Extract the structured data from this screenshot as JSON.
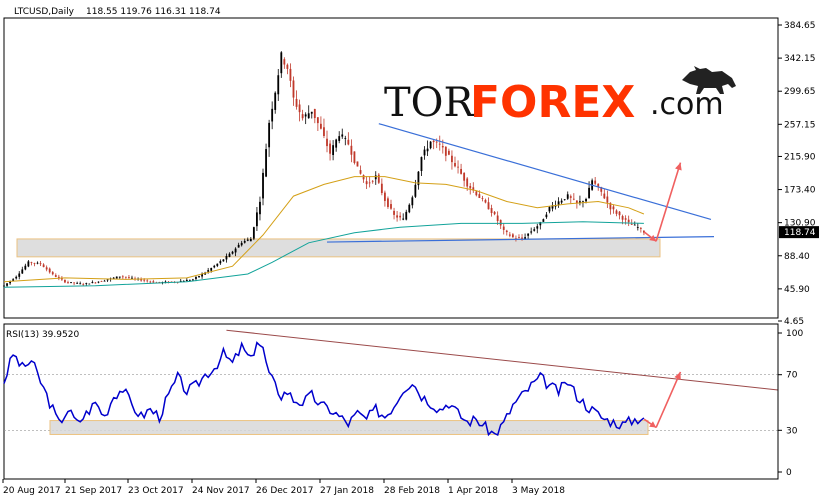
{
  "header": {
    "symbol_label": "LTCUSD,Daily",
    "ohlc_label": "118.55 119.76 116.31 118.74"
  },
  "logo": {
    "part1": "TOR",
    "part2": "FOREX",
    "part3": ".com"
  },
  "colors": {
    "bull_candle": "#000000",
    "bear_candle": "#c0392b",
    "ma_fast": "#d4a017",
    "ma_slow": "#12a39a",
    "trend_line": "#3a6fd8",
    "rsi_line": "#0000cc",
    "rsi_trend": "#9b4a4a",
    "arrow": "#f06060",
    "zone_fill": "#d9d9d9",
    "zone_border": "#e8b86a"
  },
  "chart_data": [
    {
      "type": "candlestick",
      "title": "",
      "symbol": "LTCUSD",
      "timeframe": "Daily",
      "last_ohlc": {
        "open": 118.55,
        "high": 119.76,
        "low": 116.31,
        "close": 118.74
      },
      "current_price_label": "118.74",
      "x_ticks": [
        "20 Aug 2017",
        "21 Sep 2017",
        "23 Oct 2017",
        "24 Nov 2017",
        "26 Dec 2017",
        "27 Jan 2018",
        "28 Feb 2018",
        "1 Apr 2018",
        "3 May 2018"
      ],
      "y_ticks": [
        "384.65",
        "342.15",
        "299.65",
        "257.15",
        "215.90",
        "173.40",
        "130.90",
        "88.40",
        "45.90",
        "4.65"
      ],
      "ylim": [
        4.65,
        384.65
      ],
      "price_path": [
        [
          0,
          50
        ],
        [
          4,
          62
        ],
        [
          8,
          80
        ],
        [
          12,
          78
        ],
        [
          16,
          64
        ],
        [
          20,
          55
        ],
        [
          26,
          52
        ],
        [
          32,
          56
        ],
        [
          38,
          62
        ],
        [
          44,
          58
        ],
        [
          50,
          54
        ],
        [
          56,
          55
        ],
        [
          62,
          58
        ],
        [
          66,
          67
        ],
        [
          70,
          78
        ],
        [
          74,
          90
        ],
        [
          78,
          106
        ],
        [
          81,
          110
        ],
        [
          84,
          160
        ],
        [
          87,
          260
        ],
        [
          89,
          300
        ],
        [
          91,
          345
        ],
        [
          93,
          330
        ],
        [
          95,
          290
        ],
        [
          98,
          265
        ],
        [
          101,
          275
        ],
        [
          104,
          250
        ],
        [
          107,
          220
        ],
        [
          110,
          245
        ],
        [
          113,
          232
        ],
        [
          116,
          200
        ],
        [
          119,
          180
        ],
        [
          122,
          190
        ],
        [
          125,
          160
        ],
        [
          128,
          140
        ],
        [
          131,
          135
        ],
        [
          134,
          165
        ],
        [
          137,
          215
        ],
        [
          140,
          235
        ],
        [
          143,
          230
        ],
        [
          146,
          215
        ],
        [
          149,
          200
        ],
        [
          152,
          180
        ],
        [
          155,
          168
        ],
        [
          158,
          155
        ],
        [
          161,
          140
        ],
        [
          164,
          120
        ],
        [
          167,
          112
        ],
        [
          170,
          110
        ],
        [
          173,
          120
        ],
        [
          176,
          130
        ],
        [
          179,
          150
        ],
        [
          182,
          158
        ],
        [
          185,
          165
        ],
        [
          188,
          155
        ],
        [
          191,
          162
        ],
        [
          193,
          185
        ],
        [
          196,
          170
        ],
        [
          199,
          150
        ],
        [
          202,
          140
        ],
        [
          205,
          130
        ],
        [
          208,
          125
        ],
        [
          210,
          119
        ]
      ],
      "ma_fast_path": [
        [
          0,
          55
        ],
        [
          20,
          60
        ],
        [
          40,
          58
        ],
        [
          60,
          60
        ],
        [
          75,
          75
        ],
        [
          85,
          115
        ],
        [
          95,
          165
        ],
        [
          105,
          180
        ],
        [
          115,
          190
        ],
        [
          125,
          190
        ],
        [
          135,
          182
        ],
        [
          145,
          180
        ],
        [
          155,
          172
        ],
        [
          165,
          158
        ],
        [
          175,
          150
        ],
        [
          185,
          155
        ],
        [
          195,
          158
        ],
        [
          205,
          150
        ],
        [
          210,
          142
        ]
      ],
      "ma_slow_path": [
        [
          0,
          48
        ],
        [
          30,
          50
        ],
        [
          60,
          55
        ],
        [
          80,
          65
        ],
        [
          88,
          80
        ],
        [
          100,
          105
        ],
        [
          115,
          118
        ],
        [
          130,
          125
        ],
        [
          150,
          130
        ],
        [
          170,
          130
        ],
        [
          190,
          132
        ],
        [
          210,
          130
        ]
      ],
      "trendline_upper": [
        [
          123,
          258
        ],
        [
          232,
          135
        ]
      ],
      "trendline_lower": [
        [
          106,
          106
        ],
        [
          233,
          113
        ]
      ],
      "support_zone": {
        "y_low": 87,
        "y_high": 110
      },
      "forecast_arrow": {
        "from": [
          214,
          107
        ],
        "to": [
          222,
          208
        ]
      }
    },
    {
      "type": "line",
      "title": "RSI(13) 39.9520",
      "indicator": "RSI",
      "period": 13,
      "last_value": 39.952,
      "y_ticks": [
        "100",
        "70",
        "30",
        "0"
      ],
      "ylim": [
        0,
        100
      ],
      "rsi_path": [
        [
          0,
          65
        ],
        [
          3,
          85
        ],
        [
          6,
          75
        ],
        [
          9,
          80
        ],
        [
          12,
          65
        ],
        [
          15,
          50
        ],
        [
          18,
          35
        ],
        [
          21,
          45
        ],
        [
          24,
          35
        ],
        [
          27,
          42
        ],
        [
          30,
          50
        ],
        [
          33,
          40
        ],
        [
          36,
          55
        ],
        [
          39,
          60
        ],
        [
          42,
          48
        ],
        [
          45,
          40
        ],
        [
          48,
          45
        ],
        [
          51,
          40
        ],
        [
          54,
          55
        ],
        [
          57,
          68
        ],
        [
          60,
          58
        ],
        [
          63,
          62
        ],
        [
          66,
          70
        ],
        [
          69,
          75
        ],
        [
          72,
          85
        ],
        [
          75,
          78
        ],
        [
          78,
          90
        ],
        [
          81,
          80
        ],
        [
          83,
          95
        ],
        [
          85,
          88
        ],
        [
          87,
          70
        ],
        [
          89,
          62
        ],
        [
          91,
          55
        ],
        [
          93,
          58
        ],
        [
          95,
          52
        ],
        [
          98,
          50
        ],
        [
          101,
          55
        ],
        [
          104,
          48
        ],
        [
          107,
          45
        ],
        [
          110,
          40
        ],
        [
          113,
          35
        ],
        [
          116,
          42
        ],
        [
          119,
          38
        ],
        [
          122,
          45
        ],
        [
          125,
          40
        ],
        [
          128,
          48
        ],
        [
          131,
          60
        ],
        [
          134,
          65
        ],
        [
          137,
          55
        ],
        [
          140,
          50
        ],
        [
          143,
          45
        ],
        [
          146,
          50
        ],
        [
          149,
          42
        ],
        [
          152,
          36
        ],
        [
          155,
          38
        ],
        [
          158,
          32
        ],
        [
          161,
          27
        ],
        [
          164,
          35
        ],
        [
          167,
          48
        ],
        [
          170,
          55
        ],
        [
          173,
          62
        ],
        [
          176,
          68
        ],
        [
          179,
          62
        ],
        [
          182,
          58
        ],
        [
          185,
          65
        ],
        [
          188,
          55
        ],
        [
          191,
          48
        ],
        [
          194,
          43
        ],
        [
          197,
          38
        ],
        [
          200,
          36
        ],
        [
          203,
          34
        ],
        [
          206,
          37
        ],
        [
          210,
          40
        ]
      ],
      "rsi_trendline": [
        [
          73,
          102
        ],
        [
          254,
          59
        ]
      ],
      "rsi_support_zone": {
        "y_low": 27,
        "y_high": 37
      },
      "forecast_arrow": {
        "from": [
          214,
          32
        ],
        "to": [
          222,
          72
        ]
      }
    }
  ]
}
